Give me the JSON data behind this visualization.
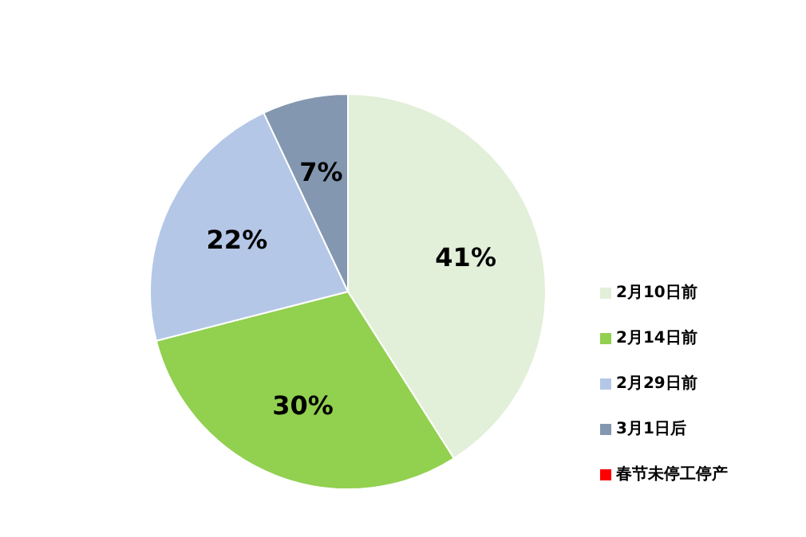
{
  "chart_data": {
    "type": "pie",
    "categories": [
      "2月10日前",
      "2月14日前",
      "2月29日前",
      "3月1日后",
      "春节未停工停产"
    ],
    "values": [
      41,
      30,
      22,
      7,
      0
    ],
    "colors": [
      "#e2efd9",
      "#92d050",
      "#b4c7e7",
      "#8497b0",
      "#ff0000"
    ],
    "value_labels": [
      "41%",
      "30%",
      "22%",
      "7%",
      null
    ],
    "legend": "right"
  }
}
